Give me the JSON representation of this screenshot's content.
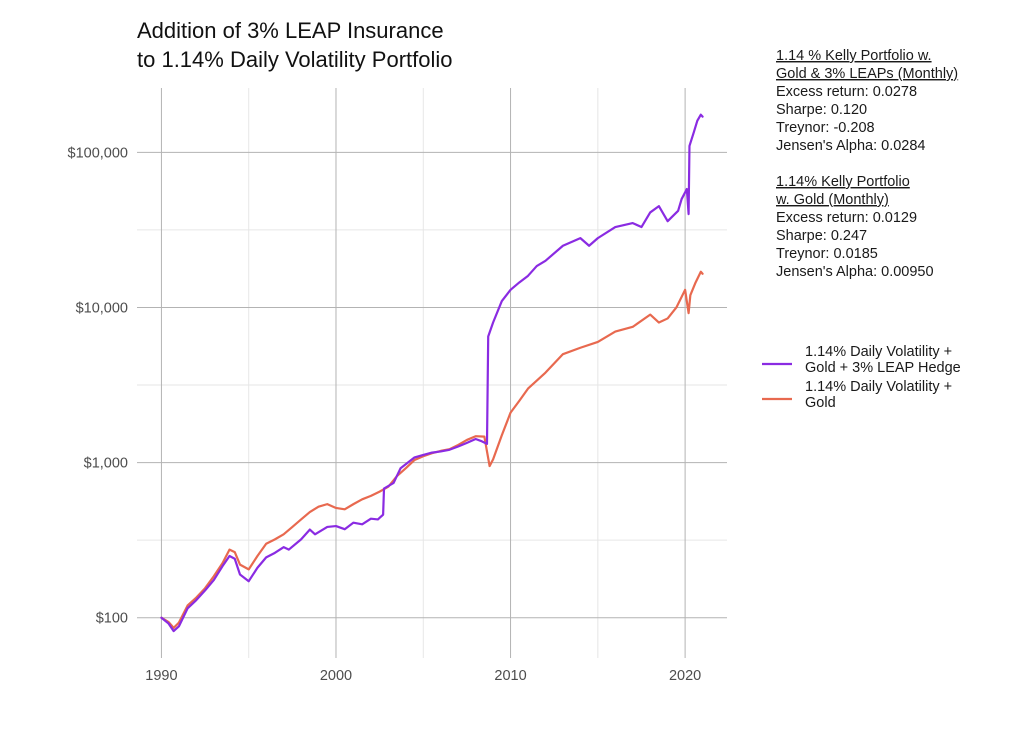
{
  "chart_data": {
    "type": "line",
    "title_lines": [
      "Addition of 3% LEAP Insurance",
      "to 1.14% Daily Volatility Portfolio"
    ],
    "xlabel": "",
    "ylabel": "",
    "y_scale": "log10",
    "xlim": [
      1988.6,
      2022.4
    ],
    "ylim": [
      55,
      260000
    ],
    "x_ticks": [
      1990,
      2000,
      2010,
      2020
    ],
    "x_tick_labels": [
      "1990",
      "2000",
      "2010",
      "2020"
    ],
    "y_ticks": [
      100,
      1000,
      10000,
      100000
    ],
    "y_tick_labels": [
      "$100",
      "$1,000",
      "$10,000",
      "$100,000"
    ],
    "grid": true,
    "legend_position": "right",
    "series": [
      {
        "name_lines": [
          "1.14% Daily Volatility +",
          "Gold + 3% LEAP Hedge"
        ],
        "color": "#8A2BE2",
        "points": [
          [
            1990.0,
            100
          ],
          [
            1990.4,
            92
          ],
          [
            1990.7,
            82
          ],
          [
            1991.0,
            88
          ],
          [
            1991.5,
            115
          ],
          [
            1992.0,
            130
          ],
          [
            1992.5,
            150
          ],
          [
            1993.0,
            175
          ],
          [
            1993.5,
            215
          ],
          [
            1993.9,
            250
          ],
          [
            1994.2,
            240
          ],
          [
            1994.5,
            190
          ],
          [
            1995.0,
            172
          ],
          [
            1995.5,
            210
          ],
          [
            1996.0,
            245
          ],
          [
            1996.5,
            262
          ],
          [
            1997.0,
            285
          ],
          [
            1997.3,
            275
          ],
          [
            1998.0,
            320
          ],
          [
            1998.5,
            370
          ],
          [
            1998.8,
            345
          ],
          [
            1999.5,
            385
          ],
          [
            2000.0,
            390
          ],
          [
            2000.5,
            372
          ],
          [
            2001.0,
            410
          ],
          [
            2001.5,
            400
          ],
          [
            2002.0,
            435
          ],
          [
            2002.4,
            430
          ],
          [
            2002.7,
            462
          ],
          [
            2002.75,
            680
          ],
          [
            2003.3,
            740
          ],
          [
            2003.7,
            920
          ],
          [
            2004.5,
            1080
          ],
          [
            2005.0,
            1120
          ],
          [
            2005.5,
            1160
          ],
          [
            2006.0,
            1180
          ],
          [
            2006.5,
            1210
          ],
          [
            2007.0,
            1270
          ],
          [
            2007.5,
            1340
          ],
          [
            2008.0,
            1420
          ],
          [
            2008.3,
            1380
          ],
          [
            2008.65,
            1320
          ],
          [
            2008.72,
            6500
          ],
          [
            2009.0,
            8000
          ],
          [
            2009.5,
            11000
          ],
          [
            2010.0,
            13000
          ],
          [
            2010.5,
            14500
          ],
          [
            2011.0,
            16000
          ],
          [
            2011.5,
            18500
          ],
          [
            2012.0,
            20000
          ],
          [
            2013.0,
            25000
          ],
          [
            2014.0,
            28000
          ],
          [
            2014.5,
            25000
          ],
          [
            2015.0,
            28000
          ],
          [
            2016.0,
            33000
          ],
          [
            2017.0,
            35000
          ],
          [
            2017.5,
            33000
          ],
          [
            2018.0,
            41000
          ],
          [
            2018.5,
            45000
          ],
          [
            2019.0,
            36000
          ],
          [
            2019.6,
            42000
          ],
          [
            2019.8,
            50000
          ],
          [
            2020.1,
            58000
          ],
          [
            2020.2,
            40000
          ],
          [
            2020.25,
            110000
          ],
          [
            2020.5,
            135000
          ],
          [
            2020.7,
            160000
          ],
          [
            2020.9,
            175000
          ],
          [
            2021.0,
            170000
          ]
        ]
      },
      {
        "name_lines": [
          "1.14% Daily Volatility +",
          "Gold"
        ],
        "color": "#E8694F",
        "points": [
          [
            1990.0,
            100
          ],
          [
            1990.4,
            94
          ],
          [
            1990.7,
            86
          ],
          [
            1991.0,
            93
          ],
          [
            1991.5,
            120
          ],
          [
            1992.0,
            135
          ],
          [
            1992.5,
            155
          ],
          [
            1993.0,
            185
          ],
          [
            1993.5,
            225
          ],
          [
            1993.9,
            275
          ],
          [
            1994.2,
            265
          ],
          [
            1994.5,
            220
          ],
          [
            1995.0,
            205
          ],
          [
            1995.5,
            250
          ],
          [
            1996.0,
            300
          ],
          [
            1996.5,
            320
          ],
          [
            1997.0,
            345
          ],
          [
            1997.5,
            385
          ],
          [
            1998.0,
            430
          ],
          [
            1998.5,
            480
          ],
          [
            1999.0,
            520
          ],
          [
            1999.5,
            540
          ],
          [
            2000.0,
            510
          ],
          [
            2000.5,
            500
          ],
          [
            2001.0,
            540
          ],
          [
            2001.5,
            580
          ],
          [
            2002.0,
            610
          ],
          [
            2002.5,
            650
          ],
          [
            2003.0,
            700
          ],
          [
            2003.5,
            820
          ],
          [
            2004.0,
            920
          ],
          [
            2004.5,
            1040
          ],
          [
            2005.0,
            1100
          ],
          [
            2005.5,
            1150
          ],
          [
            2006.0,
            1190
          ],
          [
            2006.5,
            1220
          ],
          [
            2007.0,
            1300
          ],
          [
            2007.5,
            1400
          ],
          [
            2008.0,
            1480
          ],
          [
            2008.5,
            1470
          ],
          [
            2008.8,
            950
          ],
          [
            2009.0,
            1050
          ],
          [
            2009.5,
            1500
          ],
          [
            2010.0,
            2100
          ],
          [
            2010.5,
            2500
          ],
          [
            2011.0,
            3000
          ],
          [
            2012.0,
            3800
          ],
          [
            2013.0,
            5000
          ],
          [
            2014.0,
            5500
          ],
          [
            2015.0,
            6000
          ],
          [
            2016.0,
            7000
          ],
          [
            2017.0,
            7500
          ],
          [
            2018.0,
            9000
          ],
          [
            2018.5,
            8000
          ],
          [
            2019.0,
            8500
          ],
          [
            2019.5,
            10000
          ],
          [
            2020.0,
            13000
          ],
          [
            2020.2,
            9200
          ],
          [
            2020.3,
            12000
          ],
          [
            2020.6,
            14500
          ],
          [
            2020.9,
            17000
          ],
          [
            2021.0,
            16500
          ]
        ]
      }
    ]
  },
  "stats": [
    {
      "header_lines": [
        "1.14 % Kelly Portfolio w.",
        "Gold & 3% LEAPs (Monthly)"
      ],
      "lines": [
        "Excess return: 0.0278",
        "Sharpe: 0.120",
        "Treynor: -0.208",
        "Jensen's Alpha: 0.0284"
      ]
    },
    {
      "header_lines": [
        "1.14% Kelly Portfolio",
        "w. Gold (Monthly)"
      ],
      "lines": [
        "Excess return: 0.0129",
        "Sharpe: 0.247",
        "Treynor: 0.0185",
        "Jensen's Alpha: 0.00950"
      ]
    }
  ]
}
